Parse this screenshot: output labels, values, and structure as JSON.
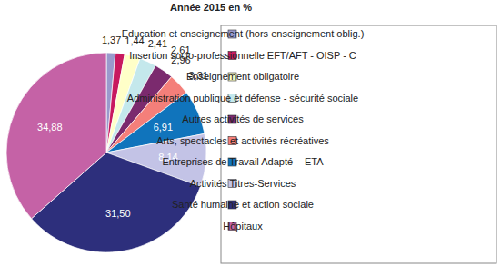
{
  "chart_data": {
    "type": "pie",
    "title": "Année 2015 en %",
    "categories": [
      "Education et enseignement (hors enseignement oblig.)",
      "Insertion socio-professionnelle EFT/AFT - OISP - C",
      "Enseignement obligatoire",
      "Administration publique et défense - sécurité sociale",
      "Autres activités de services",
      "Arts, spectacles et activités récréatives",
      "Entreprises de Travail Adapté -  ETA",
      "Activités Titres-Services",
      "Santé humaine et action sociale",
      "Hôpitaux"
    ],
    "values": [
      1.37,
      1.44,
      2.41,
      2.61,
      2.96,
      3.31,
      6.91,
      8.14,
      31.5,
      34.88
    ],
    "value_labels": [
      "1,37",
      "1,44",
      "2,41",
      "2,61",
      "2,96",
      "3,31",
      "6,91",
      "8,14",
      "31,50",
      "34,88"
    ],
    "colors": [
      "#9a9acd",
      "#c8195f",
      "#ffffc8",
      "#c4e8ec",
      "#7b2a6e",
      "#f47f7a",
      "#1074bc",
      "#c3c3e6",
      "#2d2f7c",
      "#c562a6"
    ],
    "data_labels": true,
    "legend": "right"
  }
}
